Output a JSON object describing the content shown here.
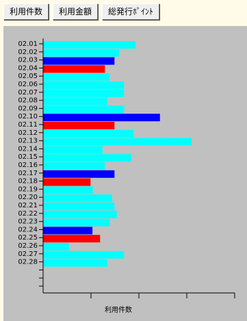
{
  "buttons": [
    "利用件数",
    "利用金額",
    "総発行ﾎﾟｲﾝﾄ"
  ],
  "chart_data": {
    "type": "bar",
    "orientation": "horizontal",
    "x_label": "利用件数",
    "categories": [
      "02.01",
      "02.02",
      "02.03",
      "02.04",
      "02.05",
      "02.06",
      "02.07",
      "02.08",
      "02.09",
      "02.10",
      "02.11",
      "02.12",
      "02.13",
      "02.14",
      "02.15",
      "02.16",
      "02.17",
      "02.18",
      "02.19",
      "02.20",
      "02.21",
      "02.22",
      "02.23",
      "02.24",
      "02.25",
      "02.26",
      "02.27",
      "02.28",
      null,
      null,
      null
    ],
    "values": [
      1.93,
      1.59,
      1.49,
      1.29,
      1.39,
      1.69,
      1.69,
      1.34,
      1.69,
      2.44,
      1.49,
      1.89,
      3.1,
      1.24,
      1.84,
      1.29,
      1.49,
      0.99,
      1.04,
      1.44,
      1.49,
      1.54,
      1.39,
      1.03,
      1.19,
      0.54,
      1.69,
      1.34,
      null,
      null,
      null
    ],
    "colors": [
      "#00ffff",
      "#00ffff",
      "#0000ff",
      "#ff0000",
      "#00ffff",
      "#00ffff",
      "#00ffff",
      "#00ffff",
      "#00ffff",
      "#0000ff",
      "#ff0000",
      "#00ffff",
      "#00ffff",
      "#00ffff",
      "#00ffff",
      "#00ffff",
      "#0000ff",
      "#ff0000",
      "#00ffff",
      "#00ffff",
      "#00ffff",
      "#00ffff",
      "#00ffff",
      "#0000ff",
      "#ff0000",
      "#00ffff",
      "#00ffff",
      "#00ffff",
      null,
      null,
      null
    ],
    "xlim": [
      0,
      4
    ],
    "xticks": [
      1,
      2,
      3,
      4
    ]
  }
}
